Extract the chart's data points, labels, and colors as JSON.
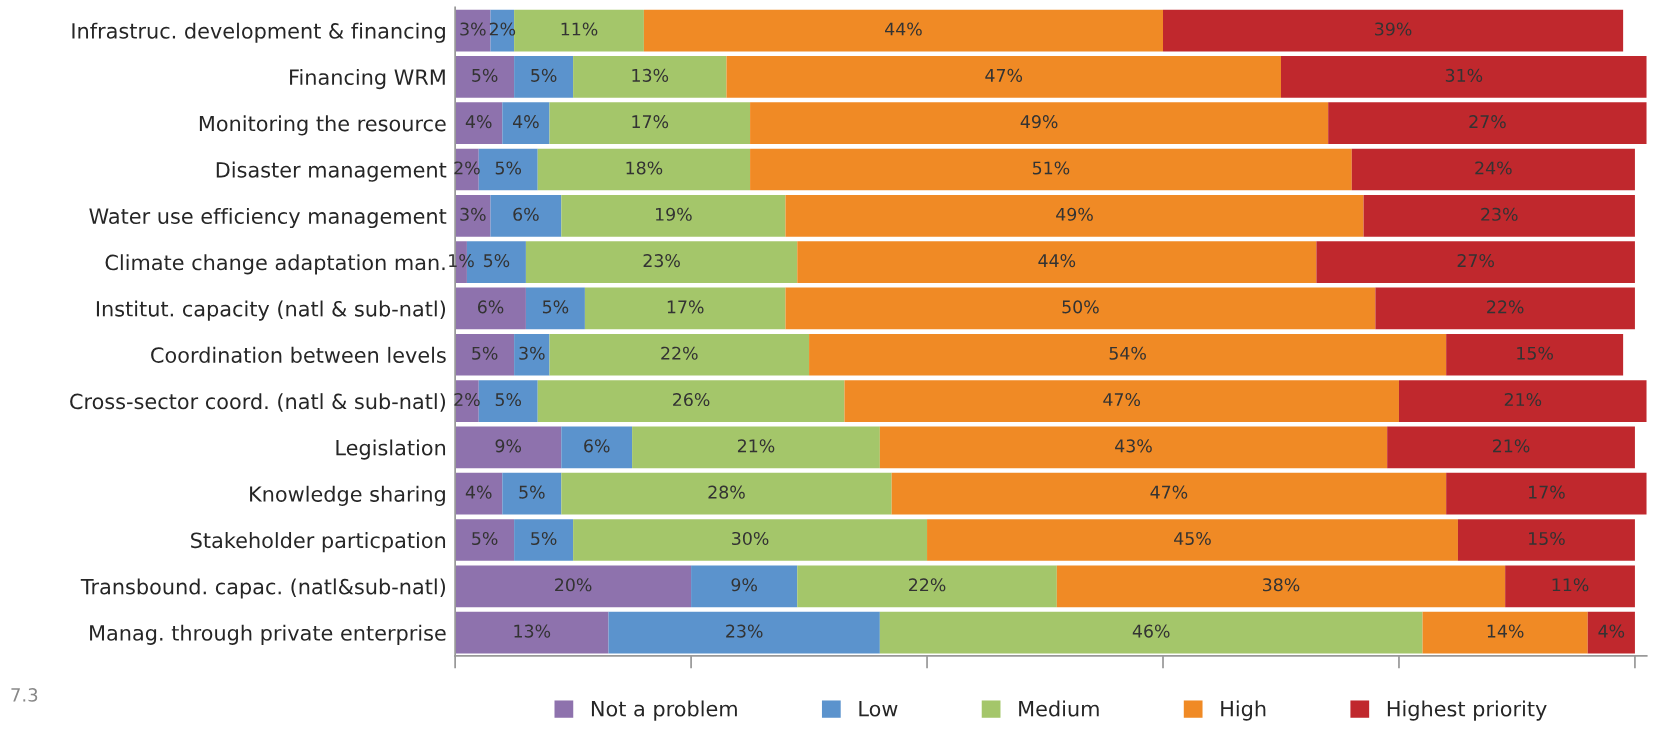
{
  "chart_data": {
    "type": "bar",
    "orientation": "horizontal",
    "stacked": true,
    "categories": [
      "Infrastruc. development & financing",
      "Financing WRM",
      "Monitoring the resource",
      "Disaster management",
      "Water use efficiency management",
      "Climate change adaptation man.",
      "Institut. capacity (natl & sub-natl)",
      "Coordination between levels",
      "Cross-sector coord. (natl & sub-natl)",
      "Legislation",
      "Knowledge sharing",
      "Stakeholder particpation",
      "Transbound. capac. (natl&sub-natl)",
      "Manag. through private enterprise"
    ],
    "series": [
      {
        "name": "Not a problem",
        "color": "#8e72ad",
        "values": [
          3,
          5,
          4,
          2,
          3,
          1,
          6,
          5,
          2,
          9,
          4,
          5,
          20,
          13
        ],
        "value_labels": [
          "3%",
          "5%",
          "4%",
          "2%",
          "3%",
          "1%",
          "6%",
          "5%",
          "2%",
          "9%",
          "4%",
          "5%",
          "20%",
          "13%"
        ]
      },
      {
        "name": "Low",
        "color": "#5b93cd",
        "values": [
          2,
          5,
          4,
          5,
          6,
          5,
          5,
          3,
          5,
          6,
          5,
          5,
          9,
          23
        ],
        "value_labels": [
          "2%",
          "5%",
          "4%",
          "5%",
          "6%",
          "5%",
          "5%",
          "3%",
          "5%",
          "6%",
          "5%",
          "5%",
          "9%",
          "23%"
        ]
      },
      {
        "name": "Medium",
        "color": "#a4c66a",
        "values": [
          11,
          13,
          17,
          18,
          19,
          23,
          17,
          22,
          26,
          21,
          28,
          30,
          22,
          46
        ],
        "value_labels": [
          "11%",
          "13%",
          "17%",
          "18%",
          "19%",
          "23%",
          "17%",
          "22%",
          "26%",
          "21%",
          "28%",
          "30%",
          "22%",
          "46%"
        ]
      },
      {
        "name": "High",
        "color": "#f08a25",
        "values": [
          44,
          47,
          49,
          51,
          49,
          44,
          50,
          54,
          47,
          43,
          47,
          45,
          38,
          14
        ],
        "value_labels": [
          "44%",
          "47%",
          "49%",
          "51%",
          "49%",
          "44%",
          "50%",
          "54%",
          "47%",
          "43%",
          "47%",
          "45%",
          "38%",
          "14%"
        ]
      },
      {
        "name": "Highest priority",
        "color": "#c0282d",
        "values": [
          39,
          31,
          27,
          24,
          23,
          27,
          22,
          15,
          21,
          21,
          17,
          15,
          11,
          4
        ],
        "value_labels": [
          "39%",
          "31%",
          "27%",
          "24%",
          "23%",
          "27%",
          "22%",
          "15%",
          "21%",
          "21%",
          "17%",
          "15%",
          "11%",
          "4%"
        ]
      }
    ],
    "xlim": [
      0,
      101
    ],
    "xticks": [
      {
        "value": 0,
        "label": null
      },
      {
        "value": 20,
        "label": null
      },
      {
        "value": 40,
        "label": null
      },
      {
        "value": 60,
        "label": null
      },
      {
        "value": 80,
        "label": null
      },
      {
        "value": 100,
        "label": null
      }
    ],
    "grid": false,
    "legend": "bottom",
    "annotations": [
      "7.3"
    ]
  }
}
